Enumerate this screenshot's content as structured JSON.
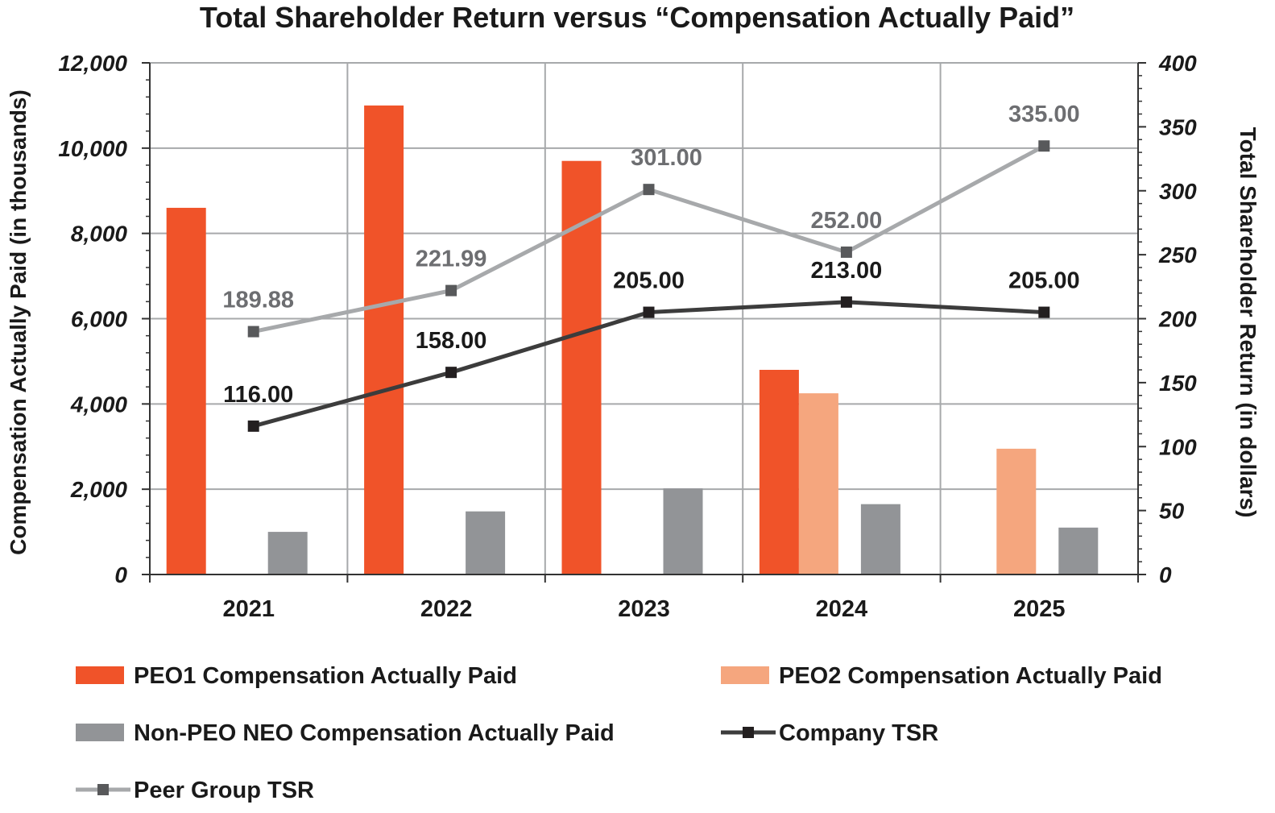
{
  "chart_data": {
    "type": "bar",
    "title": "Total Shareholder Return versus “Compensation Actually Paid”",
    "ylabel": "Compensation Actually Paid (in thousands)",
    "y2label": "Total Shareholder Return (in dollars)",
    "ylim": [
      0,
      12000
    ],
    "y2lim": [
      0,
      400
    ],
    "yticks": [
      "0",
      "2,000",
      "4,000",
      "6,000",
      "8,000",
      "10,000",
      "12,000"
    ],
    "yticks_values": [
      0,
      2000,
      4000,
      6000,
      8000,
      10000,
      12000
    ],
    "y2ticks": [
      "0",
      "50",
      "100",
      "150",
      "200",
      "250",
      "300",
      "350",
      "400"
    ],
    "y2ticks_values": [
      0,
      50,
      100,
      150,
      200,
      250,
      300,
      350,
      400
    ],
    "categories": [
      "2021",
      "2022",
      "2023",
      "2024",
      "2025"
    ],
    "bar_series": [
      {
        "name": "PEO1 Compensation Actually Paid",
        "color": "#f05329",
        "values": [
          8600,
          11000,
          9700,
          4800,
          null
        ]
      },
      {
        "name": "PEO2 Compensation Actually Paid",
        "color": "#f5a67e",
        "values": [
          null,
          null,
          null,
          4250,
          2950
        ]
      },
      {
        "name": "Non-PEO NEO Compensation Actually Paid",
        "color": "#929497",
        "values": [
          1000,
          1480,
          2020,
          1650,
          1100
        ]
      }
    ],
    "line_series": [
      {
        "name": "Company TSR",
        "color": "#3c3c3c",
        "label_color": "#1a1a1a",
        "axis": "right",
        "values": [
          116.0,
          158.0,
          205.0,
          213.0,
          205.0
        ],
        "labels": [
          "116.00",
          "158.00",
          "205.00",
          "213.00",
          "205.00"
        ]
      },
      {
        "name": "Peer Group TSR",
        "color": "#a7a9ab",
        "label_color": "#6d6e71",
        "axis": "right",
        "values": [
          189.88,
          221.99,
          301.0,
          252.0,
          335.0
        ],
        "labels": [
          "189.88",
          "221.99",
          "301.00",
          "252.00",
          "335.00"
        ]
      }
    ],
    "grid": true,
    "legend_position": "bottom",
    "legend": [
      {
        "label": "PEO1 Compensation Actually Paid",
        "kind": "bar",
        "color": "#f05329"
      },
      {
        "label": "PEO2 Compensation Actually Paid",
        "kind": "bar",
        "color": "#f5a67e"
      },
      {
        "label": "Non-PEO NEO Compensation Actually Paid",
        "kind": "bar",
        "color": "#929497"
      },
      {
        "label": "Company TSR",
        "kind": "line",
        "color": "#3c3c3c"
      },
      {
        "label": "Peer Group TSR",
        "kind": "line",
        "color": "#a7a9ab"
      }
    ]
  }
}
